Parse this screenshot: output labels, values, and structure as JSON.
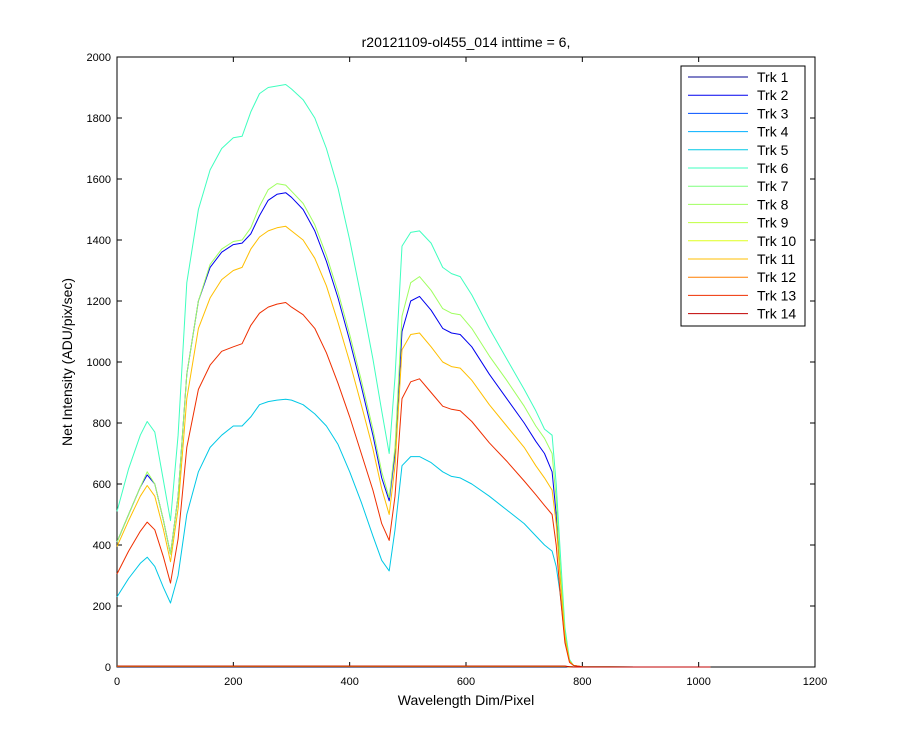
{
  "chart_data": {
    "type": "line",
    "title": "r20121109-ol455_014 inttime = 6,",
    "xlabel": "Wavelength Dim/Pixel",
    "ylabel": "Net Intensity (ADU/pix/sec)",
    "xlim": [
      0,
      1200
    ],
    "ylim": [
      0,
      2000
    ],
    "xticks": [
      0,
      200,
      400,
      600,
      800,
      1000,
      1200
    ],
    "yticks": [
      0,
      200,
      400,
      600,
      800,
      1000,
      1200,
      1400,
      1600,
      1800,
      2000
    ],
    "grid": false,
    "legend_position": "top-right",
    "x": [
      0,
      20,
      40,
      52,
      65,
      80,
      92,
      105,
      120,
      140,
      160,
      180,
      200,
      215,
      230,
      245,
      260,
      275,
      290,
      300,
      320,
      340,
      360,
      380,
      400,
      420,
      440,
      455,
      468,
      478,
      490,
      505,
      520,
      540,
      560,
      575,
      590,
      610,
      640,
      670,
      700,
      720,
      735,
      748,
      755,
      762,
      770,
      778,
      785,
      800,
      900,
      1020
    ],
    "series": [
      {
        "name": "Trk 1",
        "color": "#00008F",
        "values": [
          1,
          1,
          1,
          1,
          1,
          1,
          1,
          1,
          1,
          1,
          1,
          1,
          1,
          1,
          1,
          1,
          1,
          1,
          1,
          1,
          1,
          1,
          1,
          1,
          1,
          1,
          1,
          1,
          1,
          1,
          1,
          1,
          1,
          1,
          1,
          1,
          1,
          1,
          1,
          1,
          1,
          1,
          1,
          1,
          1,
          1,
          1,
          1,
          0,
          0,
          0,
          0
        ]
      },
      {
        "name": "Trk 2",
        "color": "#0000EF",
        "values": [
          410,
          500,
          590,
          630,
          600,
          480,
          370,
          560,
          960,
          1200,
          1310,
          1360,
          1385,
          1390,
          1420,
          1480,
          1530,
          1550,
          1555,
          1540,
          1500,
          1430,
          1330,
          1210,
          1070,
          920,
          760,
          620,
          545,
          700,
          1100,
          1200,
          1215,
          1170,
          1110,
          1095,
          1090,
          1050,
          960,
          880,
          800,
          740,
          700,
          640,
          500,
          300,
          100,
          20,
          5,
          1,
          0,
          0
        ]
      },
      {
        "name": "Trk 3",
        "color": "#004FFF",
        "values": [
          2,
          2,
          2,
          2,
          2,
          2,
          2,
          2,
          2,
          2,
          2,
          2,
          2,
          2,
          2,
          2,
          2,
          2,
          2,
          2,
          2,
          2,
          2,
          2,
          2,
          2,
          2,
          2,
          2,
          2,
          2,
          2,
          2,
          2,
          2,
          2,
          2,
          2,
          2,
          2,
          2,
          2,
          2,
          2,
          2,
          2,
          2,
          1,
          0,
          0,
          0,
          0
        ]
      },
      {
        "name": "Trk 4",
        "color": "#00AFFF",
        "values": [
          2,
          2,
          2,
          2,
          2,
          2,
          2,
          2,
          2,
          2,
          2,
          2,
          2,
          2,
          2,
          2,
          2,
          2,
          2,
          2,
          2,
          2,
          2,
          2,
          2,
          2,
          2,
          2,
          2,
          2,
          2,
          2,
          2,
          2,
          2,
          2,
          2,
          2,
          2,
          2,
          2,
          2,
          2,
          2,
          2,
          2,
          2,
          1,
          0,
          0,
          0,
          0
        ]
      },
      {
        "name": "Trk 5",
        "color": "#00C8E6",
        "values": [
          230,
          290,
          340,
          360,
          330,
          260,
          210,
          300,
          500,
          640,
          720,
          760,
          790,
          790,
          820,
          860,
          870,
          875,
          878,
          875,
          860,
          830,
          790,
          730,
          640,
          540,
          430,
          350,
          315,
          450,
          660,
          690,
          690,
          670,
          640,
          625,
          620,
          600,
          560,
          515,
          470,
          430,
          400,
          380,
          330,
          240,
          90,
          20,
          5,
          1,
          0,
          0
        ]
      },
      {
        "name": "Trk 6",
        "color": "#3FFFBF",
        "values": [
          510,
          650,
          760,
          805,
          770,
          610,
          480,
          760,
          1260,
          1500,
          1630,
          1700,
          1735,
          1740,
          1820,
          1880,
          1900,
          1905,
          1910,
          1895,
          1860,
          1800,
          1700,
          1570,
          1400,
          1210,
          1010,
          840,
          700,
          950,
          1380,
          1425,
          1430,
          1390,
          1310,
          1290,
          1280,
          1220,
          1110,
          1010,
          910,
          840,
          780,
          760,
          600,
          380,
          130,
          25,
          5,
          1,
          0,
          0
        ]
      },
      {
        "name": "Trk 7",
        "color": "#7FFF7F",
        "values": [
          2,
          2,
          2,
          2,
          2,
          2,
          2,
          2,
          2,
          2,
          2,
          2,
          2,
          2,
          2,
          2,
          2,
          2,
          2,
          2,
          2,
          2,
          2,
          2,
          2,
          2,
          2,
          2,
          2,
          2,
          2,
          2,
          2,
          2,
          2,
          2,
          2,
          2,
          2,
          2,
          2,
          2,
          2,
          2,
          2,
          2,
          2,
          1,
          0,
          0,
          0,
          0
        ]
      },
      {
        "name": "Trk 8",
        "color": "#9FFF5F",
        "values": [
          410,
          500,
          590,
          640,
          600,
          480,
          370,
          560,
          960,
          1200,
          1320,
          1370,
          1395,
          1400,
          1440,
          1510,
          1565,
          1585,
          1580,
          1560,
          1520,
          1450,
          1350,
          1230,
          1090,
          940,
          780,
          640,
          555,
          720,
          1150,
          1260,
          1280,
          1235,
          1175,
          1160,
          1155,
          1110,
          1020,
          940,
          855,
          790,
          750,
          700,
          550,
          330,
          110,
          20,
          5,
          1,
          0,
          0
        ]
      },
      {
        "name": "Trk 9",
        "color": "#BFFF3F",
        "values": [
          2,
          2,
          2,
          2,
          2,
          2,
          2,
          2,
          2,
          2,
          2,
          2,
          2,
          2,
          2,
          2,
          2,
          2,
          2,
          2,
          2,
          2,
          2,
          2,
          2,
          2,
          2,
          2,
          2,
          2,
          2,
          2,
          2,
          2,
          2,
          2,
          2,
          2,
          2,
          2,
          2,
          2,
          2,
          2,
          2,
          2,
          2,
          1,
          0,
          0,
          0,
          0
        ]
      },
      {
        "name": "Trk 10",
        "color": "#DFFF1F",
        "values": [
          2,
          2,
          2,
          2,
          2,
          2,
          2,
          2,
          2,
          2,
          2,
          2,
          2,
          2,
          2,
          2,
          2,
          2,
          2,
          2,
          2,
          2,
          2,
          2,
          2,
          2,
          2,
          2,
          2,
          2,
          2,
          2,
          2,
          2,
          2,
          2,
          2,
          2,
          2,
          2,
          2,
          2,
          2,
          2,
          2,
          2,
          2,
          1,
          0,
          0,
          0,
          0
        ]
      },
      {
        "name": "Trk 11",
        "color": "#FFBF00",
        "values": [
          395,
          480,
          560,
          595,
          560,
          450,
          345,
          520,
          880,
          1110,
          1210,
          1270,
          1300,
          1310,
          1370,
          1410,
          1430,
          1440,
          1445,
          1430,
          1400,
          1340,
          1250,
          1130,
          1000,
          860,
          715,
          585,
          500,
          660,
          1040,
          1090,
          1095,
          1050,
          1000,
          985,
          980,
          940,
          860,
          790,
          720,
          660,
          620,
          580,
          470,
          290,
          100,
          20,
          5,
          1,
          0,
          0
        ]
      },
      {
        "name": "Trk 12",
        "color": "#FF7F00",
        "values": [
          3,
          3,
          3,
          3,
          3,
          3,
          3,
          3,
          3,
          3,
          3,
          3,
          3,
          3,
          3,
          3,
          3,
          3,
          3,
          3,
          3,
          3,
          3,
          3,
          3,
          3,
          3,
          3,
          3,
          3,
          3,
          3,
          3,
          3,
          3,
          3,
          3,
          3,
          3,
          3,
          3,
          3,
          3,
          3,
          3,
          3,
          3,
          1,
          0,
          0,
          0,
          0
        ]
      },
      {
        "name": "Trk 13",
        "color": "#EF2F00",
        "values": [
          305,
          380,
          445,
          475,
          450,
          360,
          275,
          420,
          720,
          910,
          990,
          1035,
          1050,
          1060,
          1120,
          1160,
          1180,
          1190,
          1195,
          1180,
          1155,
          1110,
          1030,
          930,
          820,
          700,
          580,
          470,
          415,
          560,
          880,
          935,
          945,
          900,
          855,
          845,
          840,
          805,
          735,
          675,
          610,
          565,
          530,
          500,
          400,
          240,
          80,
          15,
          5,
          1,
          0,
          0
        ]
      },
      {
        "name": "Trk 14",
        "color": "#C00000",
        "values": [
          3,
          3,
          3,
          3,
          3,
          3,
          3,
          3,
          3,
          3,
          3,
          3,
          3,
          3,
          3,
          3,
          3,
          3,
          3,
          3,
          3,
          3,
          3,
          3,
          3,
          3,
          3,
          3,
          3,
          3,
          3,
          3,
          3,
          3,
          3,
          3,
          3,
          3,
          3,
          3,
          3,
          3,
          3,
          3,
          3,
          3,
          3,
          1,
          0,
          0,
          0,
          0
        ]
      }
    ]
  }
}
